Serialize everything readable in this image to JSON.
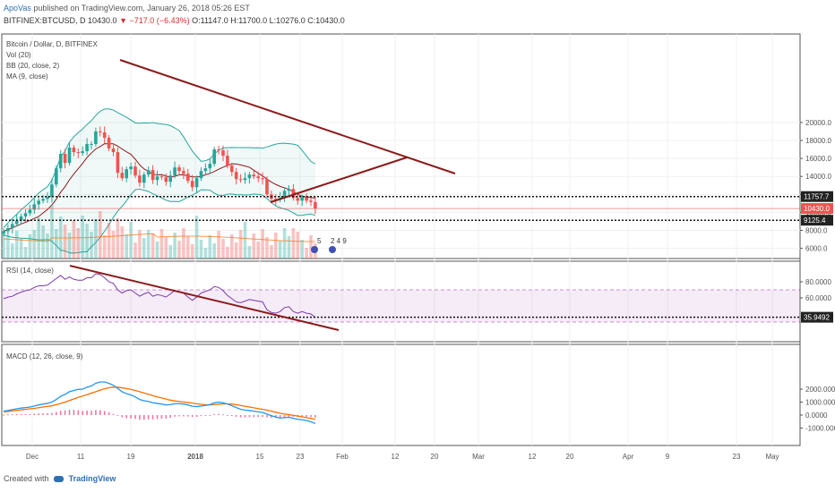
{
  "header": {
    "author": "ApoVas",
    "published": "published on TradingView.com, January 26, 2018 05:26 EST",
    "symbol": "BITFINEX:BTCUSD, D",
    "last": "10430.0",
    "arrow": "▼",
    "change": "−717.0 (−6.43%)",
    "ohlc": "O:11147.0 H:11700.0 L:10276.0 C:10430.0"
  },
  "footer": {
    "created": "Created with",
    "brand": "TradingView"
  },
  "colors": {
    "up": "#26a69a",
    "down": "#ef5350",
    "trend": "#8b1a1a",
    "bb": "#26a69a",
    "ma": "#8b1a1a",
    "rsi": "#7b3aa8",
    "macd": "#2196f3",
    "signal": "#ff6d00",
    "hist": "#e91e63"
  },
  "chart_data": [
    {
      "type": "candlestick",
      "legend": [
        "Bitcoin / Dollar, D, BITFINEX",
        "Vol (20)",
        "BB (20, close, 2)",
        "MA (9, close)"
      ],
      "y_ticks": [
        "20000.0",
        "18000.0",
        "16000.0",
        "14000.0",
        "12000.0",
        "10000.0",
        "8000.0",
        "6000.0"
      ],
      "price_labels": [
        {
          "text": "11757.7",
          "value": 11757.7,
          "style": "dark"
        },
        {
          "text": "10430.0",
          "value": 10430.0,
          "style": "red"
        },
        {
          "text": "9125.4",
          "value": 9125.4,
          "style": "dark"
        }
      ],
      "dotted_levels": [
        11757.7,
        9125.4
      ],
      "event_labels": [
        "5",
        "2 4 9"
      ],
      "closes": [
        7900,
        8250,
        8700,
        9100,
        9550,
        9900,
        10300,
        10900,
        11300,
        11500,
        11700,
        13100,
        14900,
        16500,
        15500,
        17200,
        16700,
        16600,
        16800,
        17600,
        17600,
        19000,
        18900,
        18300,
        17100,
        16700,
        14400,
        13800,
        14800,
        15100,
        14100,
        13300,
        14200,
        14700,
        13600,
        14000,
        13900,
        13400,
        14100,
        15000,
        14600,
        14300,
        13500,
        12800,
        13800,
        14600,
        14900,
        15400,
        17000,
        16900,
        16300,
        15200,
        14500,
        13700,
        13600,
        13800,
        14200,
        14000,
        13800,
        13700,
        12000,
        11500,
        11400,
        11600,
        12400,
        12600,
        11600,
        11300,
        11700,
        11300,
        11150,
        10430
      ],
      "volume_note": "volume histogram, approximate"
    },
    {
      "type": "line",
      "legend": [
        "RSI (14, close)"
      ],
      "y_ticks": [
        "80.0000",
        "60.0000"
      ],
      "band": [
        30,
        70
      ],
      "last_label": "35.9492",
      "values": [
        59,
        61,
        62,
        65,
        67,
        69,
        70,
        73,
        75,
        75,
        76,
        80,
        84,
        88,
        83,
        86,
        83,
        82,
        82,
        85,
        85,
        90,
        89,
        85,
        80,
        78,
        70,
        66,
        69,
        70,
        66,
        62,
        65,
        67,
        62,
        64,
        63,
        61,
        65,
        69,
        67,
        66,
        61,
        57,
        61,
        66,
        68,
        70,
        74,
        73,
        69,
        63,
        59,
        55,
        54,
        56,
        58,
        57,
        56,
        55,
        45,
        42,
        41,
        43,
        48,
        49,
        43,
        41,
        43,
        41,
        40,
        35.9
      ]
    },
    {
      "type": "line",
      "legend": [
        "MACD (12, 26, close, 9)"
      ],
      "y_ticks": [
        "2000.0000",
        "1000.0000",
        "0.0000",
        "-1000.0000"
      ],
      "macd": [
        300,
        350,
        420,
        480,
        540,
        580,
        620,
        700,
        780,
        850,
        900,
        1000,
        1200,
        1450,
        1600,
        1800,
        1900,
        1980,
        2000,
        2150,
        2250,
        2450,
        2550,
        2550,
        2450,
        2300,
        2050,
        1800,
        1650,
        1550,
        1400,
        1200,
        1100,
        1050,
        950,
        900,
        850,
        780,
        800,
        880,
        880,
        850,
        780,
        680,
        650,
        700,
        740,
        800,
        950,
        1000,
        950,
        850,
        720,
        580,
        450,
        380,
        350,
        300,
        250,
        200,
        80,
        -50,
        -150,
        -230,
        -200,
        -170,
        -250,
        -330,
        -360,
        -420,
        -520,
        -650
      ],
      "signal": [
        250,
        280,
        320,
        360,
        400,
        440,
        480,
        520,
        570,
        620,
        670,
        720,
        800,
        900,
        1000,
        1120,
        1240,
        1360,
        1470,
        1580,
        1690,
        1800,
        1920,
        2030,
        2110,
        2150,
        2150,
        2100,
        2040,
        1980,
        1900,
        1800,
        1700,
        1600,
        1500,
        1400,
        1320,
        1230,
        1150,
        1090,
        1050,
        1010,
        970,
        920,
        870,
        830,
        800,
        790,
        810,
        840,
        860,
        860,
        840,
        800,
        740,
        680,
        620,
        560,
        500,
        440,
        380,
        300,
        220,
        140,
        80,
        30,
        -20,
        -80,
        -140,
        -200,
        -260,
        -330
      ],
      "histogram_note": "histogram = macd - signal"
    }
  ],
  "x_axis": {
    "labels": [
      "Dec",
      "11",
      "19",
      "2018",
      "15",
      "23",
      "Feb",
      "12",
      "20",
      "Mar",
      "12",
      "20",
      "Apr",
      "9",
      "23",
      "May"
    ]
  }
}
